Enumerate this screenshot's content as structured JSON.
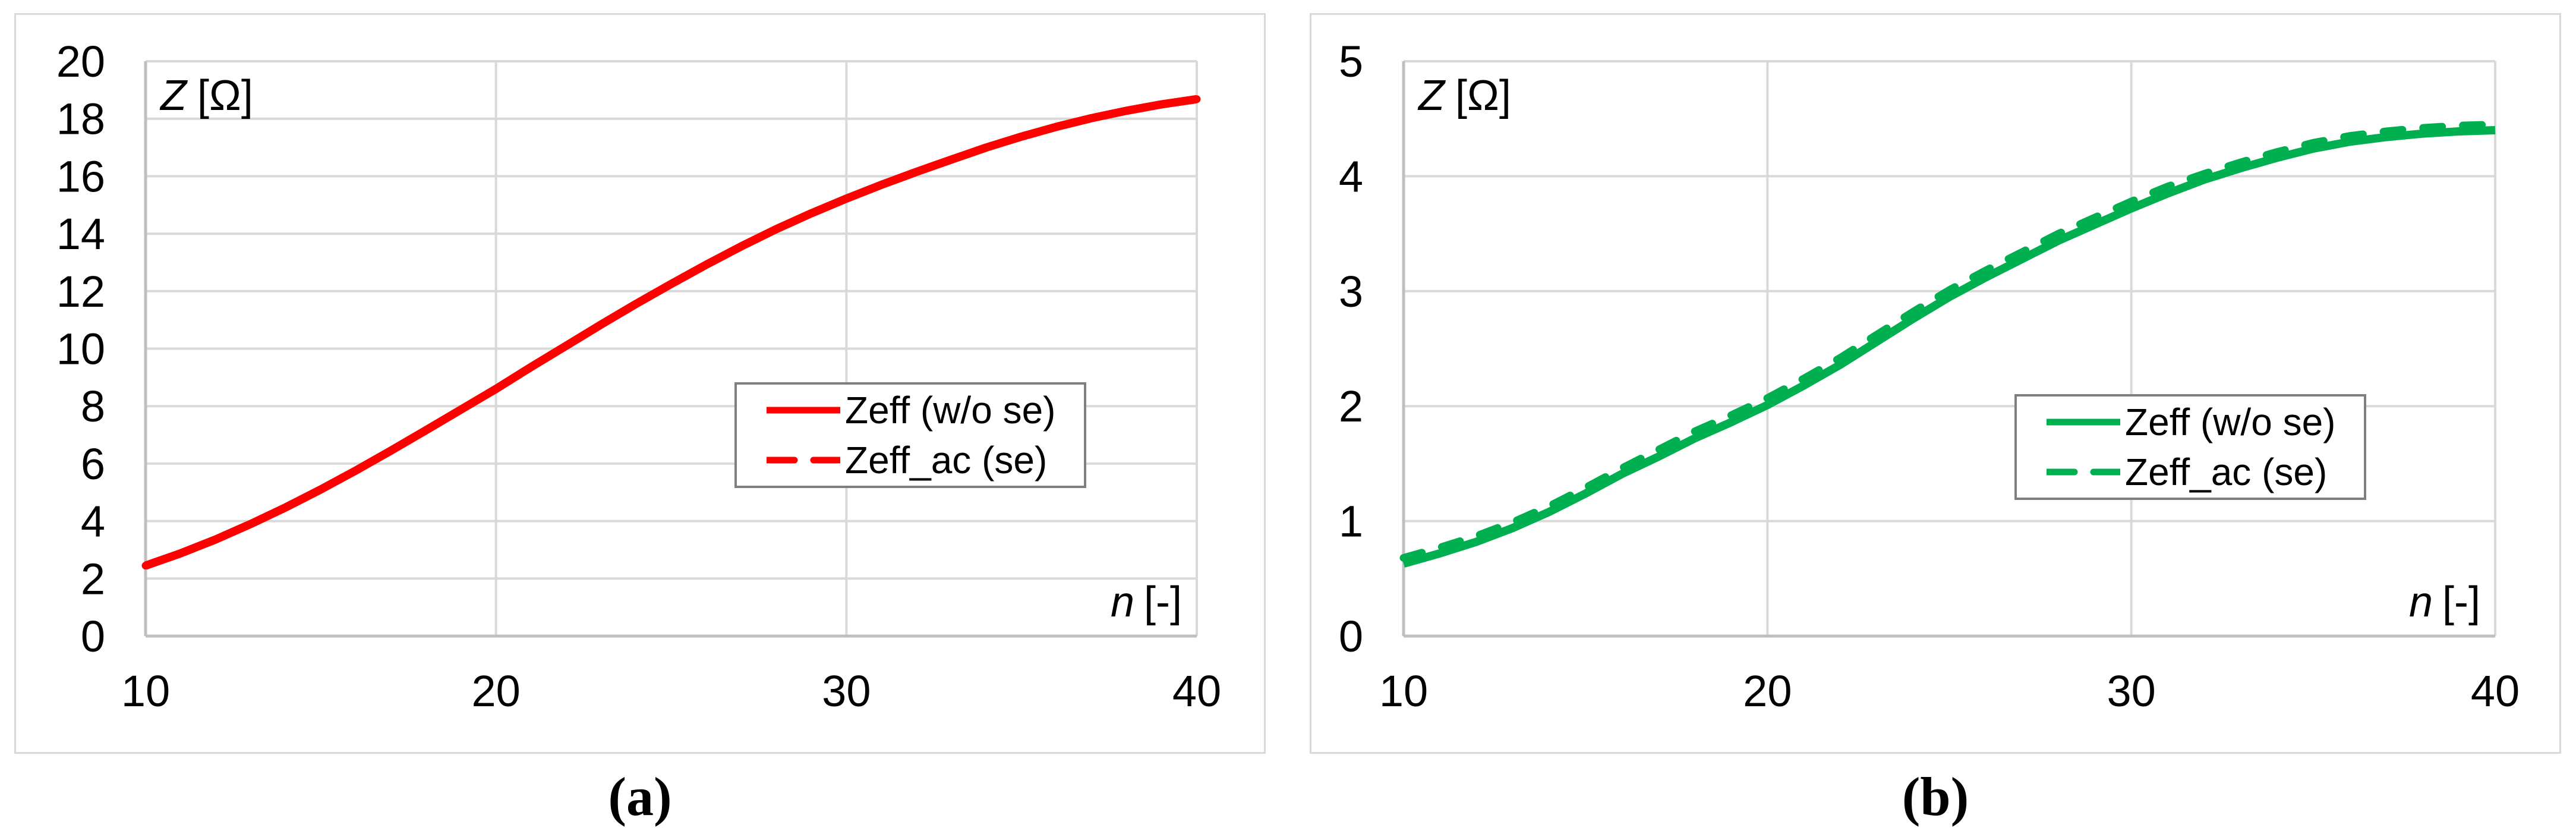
{
  "figure": {
    "background": "#ffffff",
    "panel_border_color": "#d9d9d9",
    "grid_color": "#d9d9d9",
    "axis_line_color": "#bfbfbf",
    "legend_border_color": "#7f7f7f",
    "caption_a": "(a)",
    "caption_b": "(b)"
  },
  "chart_data": [
    {
      "type": "line",
      "title": {
        "var": "Z",
        "unit": "[Ω]"
      },
      "xlabel": {
        "var": "n",
        "unit": "[-]"
      },
      "xlim": [
        10,
        40
      ],
      "ylim": [
        0,
        20
      ],
      "x_ticks": [
        10,
        20,
        30,
        40
      ],
      "y_ticks": [
        0,
        2,
        4,
        6,
        8,
        10,
        12,
        14,
        16,
        18,
        20
      ],
      "grid_x": [
        20,
        30
      ],
      "grid_y": [
        2,
        4,
        6,
        8,
        10,
        12,
        14,
        16,
        18
      ],
      "grid_on": true,
      "legend_position": "inside-right-middle",
      "color": "#ff0000",
      "series": [
        {
          "name": "Zeff (w/o se)",
          "style": "solid",
          "x": [
            10,
            11,
            12,
            13,
            14,
            15,
            16,
            17,
            18,
            19,
            20,
            21,
            22,
            23,
            24,
            25,
            26,
            27,
            28,
            29,
            30,
            31,
            32,
            33,
            34,
            35,
            36,
            37,
            38,
            39,
            40
          ],
          "y": [
            2.45,
            2.88,
            3.36,
            3.9,
            4.48,
            5.1,
            5.76,
            6.45,
            7.16,
            7.88,
            8.6,
            9.36,
            10.1,
            10.84,
            11.56,
            12.25,
            12.92,
            13.56,
            14.16,
            14.71,
            15.22,
            15.7,
            16.15,
            16.58,
            17.0,
            17.38,
            17.72,
            18.02,
            18.28,
            18.5,
            18.68
          ]
        },
        {
          "name": "Zeff_ac (se)",
          "style": "dashed",
          "x": [
            10,
            11,
            12,
            13,
            14,
            15,
            16,
            17,
            18,
            19,
            20,
            21,
            22,
            23,
            24,
            25,
            26,
            27,
            28,
            29,
            30,
            31,
            32,
            33,
            34,
            35,
            36,
            37,
            38,
            39,
            40
          ],
          "y": [
            2.45,
            2.88,
            3.36,
            3.9,
            4.48,
            5.1,
            5.76,
            6.45,
            7.16,
            7.88,
            8.6,
            9.36,
            10.1,
            10.84,
            11.56,
            12.25,
            12.92,
            13.56,
            14.16,
            14.71,
            15.22,
            15.7,
            16.15,
            16.58,
            17.0,
            17.38,
            17.72,
            18.02,
            18.28,
            18.5,
            18.68
          ]
        }
      ]
    },
    {
      "type": "line",
      "title": {
        "var": "Z",
        "unit": "[Ω]"
      },
      "xlabel": {
        "var": "n",
        "unit": "[-]"
      },
      "xlim": [
        10,
        40
      ],
      "ylim": [
        0,
        5
      ],
      "x_ticks": [
        10,
        20,
        30,
        40
      ],
      "y_ticks": [
        0,
        1,
        2,
        3,
        4,
        5
      ],
      "grid_x": [
        20,
        30
      ],
      "grid_y": [
        1,
        2,
        3,
        4
      ],
      "grid_on": true,
      "legend_position": "inside-right-middle",
      "color": "#00b050",
      "series": [
        {
          "name": "Zeff (w/o se)",
          "style": "solid",
          "x": [
            10,
            11,
            12,
            13,
            14,
            15,
            16,
            17,
            18,
            19,
            20,
            21,
            22,
            23,
            24,
            25,
            26,
            27,
            28,
            29,
            30,
            31,
            32,
            33,
            34,
            35,
            36,
            37,
            38,
            39,
            40
          ],
          "y": [
            0.63,
            0.72,
            0.82,
            0.94,
            1.08,
            1.24,
            1.41,
            1.56,
            1.72,
            1.86,
            2.01,
            2.18,
            2.36,
            2.56,
            2.76,
            2.95,
            3.12,
            3.28,
            3.44,
            3.58,
            3.72,
            3.85,
            3.97,
            4.07,
            4.16,
            4.24,
            4.3,
            4.34,
            4.37,
            4.39,
            4.4
          ]
        },
        {
          "name": "Zeff_ac (se)",
          "style": "dashed",
          "x": [
            10,
            11,
            12,
            13,
            14,
            15,
            16,
            17,
            18,
            19,
            20,
            21,
            22,
            23,
            24,
            25,
            26,
            27,
            28,
            29,
            30,
            31,
            32,
            33,
            34,
            35,
            36,
            37,
            38,
            39,
            40
          ],
          "y": [
            0.68,
            0.77,
            0.87,
            0.99,
            1.13,
            1.29,
            1.46,
            1.62,
            1.78,
            1.92,
            2.07,
            2.24,
            2.42,
            2.62,
            2.82,
            3.01,
            3.18,
            3.34,
            3.5,
            3.64,
            3.78,
            3.91,
            4.02,
            4.12,
            4.21,
            4.29,
            4.35,
            4.39,
            4.42,
            4.44,
            4.45
          ]
        }
      ]
    }
  ]
}
